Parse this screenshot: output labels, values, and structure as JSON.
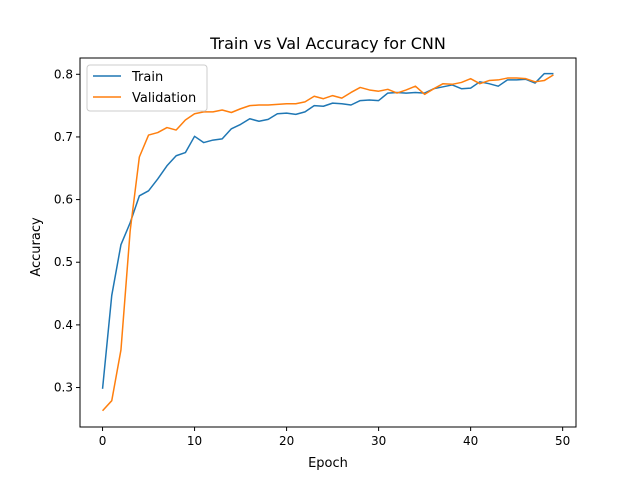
{
  "chart_data": {
    "type": "line",
    "title": "Train vs Val Accuracy for CNN",
    "xlabel": "Epoch",
    "ylabel": "Accuracy",
    "xlim": [
      -2.45,
      51.45
    ],
    "ylim": [
      0.237,
      0.826
    ],
    "xticks": [
      0,
      10,
      20,
      30,
      40,
      50
    ],
    "yticks": [
      0.3,
      0.4,
      0.5,
      0.6,
      0.7,
      0.8
    ],
    "xtick_labels": [
      "0",
      "10",
      "20",
      "30",
      "40",
      "50"
    ],
    "ytick_labels": [
      "0.3",
      "0.4",
      "0.5",
      "0.6",
      "0.7",
      "0.8"
    ],
    "grid": false,
    "legend_position": "top-left",
    "x": [
      0,
      1,
      2,
      3,
      4,
      5,
      6,
      7,
      8,
      9,
      10,
      11,
      12,
      13,
      14,
      15,
      16,
      17,
      18,
      19,
      20,
      21,
      22,
      23,
      24,
      25,
      26,
      27,
      28,
      29,
      30,
      31,
      32,
      33,
      34,
      35,
      36,
      37,
      38,
      39,
      40,
      41,
      42,
      43,
      44,
      45,
      46,
      47,
      48,
      49
    ],
    "series": [
      {
        "name": "Train",
        "color": "#1f77b4",
        "values": [
          0.298,
          0.447,
          0.528,
          0.563,
          0.606,
          0.614,
          0.633,
          0.654,
          0.67,
          0.675,
          0.701,
          0.691,
          0.695,
          0.697,
          0.713,
          0.72,
          0.729,
          0.725,
          0.728,
          0.737,
          0.738,
          0.736,
          0.74,
          0.75,
          0.749,
          0.754,
          0.753,
          0.751,
          0.758,
          0.759,
          0.758,
          0.77,
          0.771,
          0.77,
          0.771,
          0.77,
          0.777,
          0.78,
          0.783,
          0.777,
          0.778,
          0.788,
          0.785,
          0.781,
          0.791,
          0.791,
          0.792,
          0.786,
          0.801,
          0.801
        ]
      },
      {
        "name": "Validation",
        "color": "#ff7f0e",
        "values": [
          0.263,
          0.279,
          0.36,
          0.55,
          0.668,
          0.703,
          0.707,
          0.715,
          0.711,
          0.727,
          0.737,
          0.74,
          0.74,
          0.743,
          0.739,
          0.745,
          0.75,
          0.751,
          0.751,
          0.752,
          0.753,
          0.753,
          0.756,
          0.765,
          0.761,
          0.766,
          0.762,
          0.771,
          0.779,
          0.775,
          0.773,
          0.776,
          0.77,
          0.775,
          0.781,
          0.768,
          0.777,
          0.785,
          0.784,
          0.787,
          0.793,
          0.785,
          0.79,
          0.791,
          0.794,
          0.794,
          0.793,
          0.788,
          0.79,
          0.799
        ]
      }
    ]
  }
}
